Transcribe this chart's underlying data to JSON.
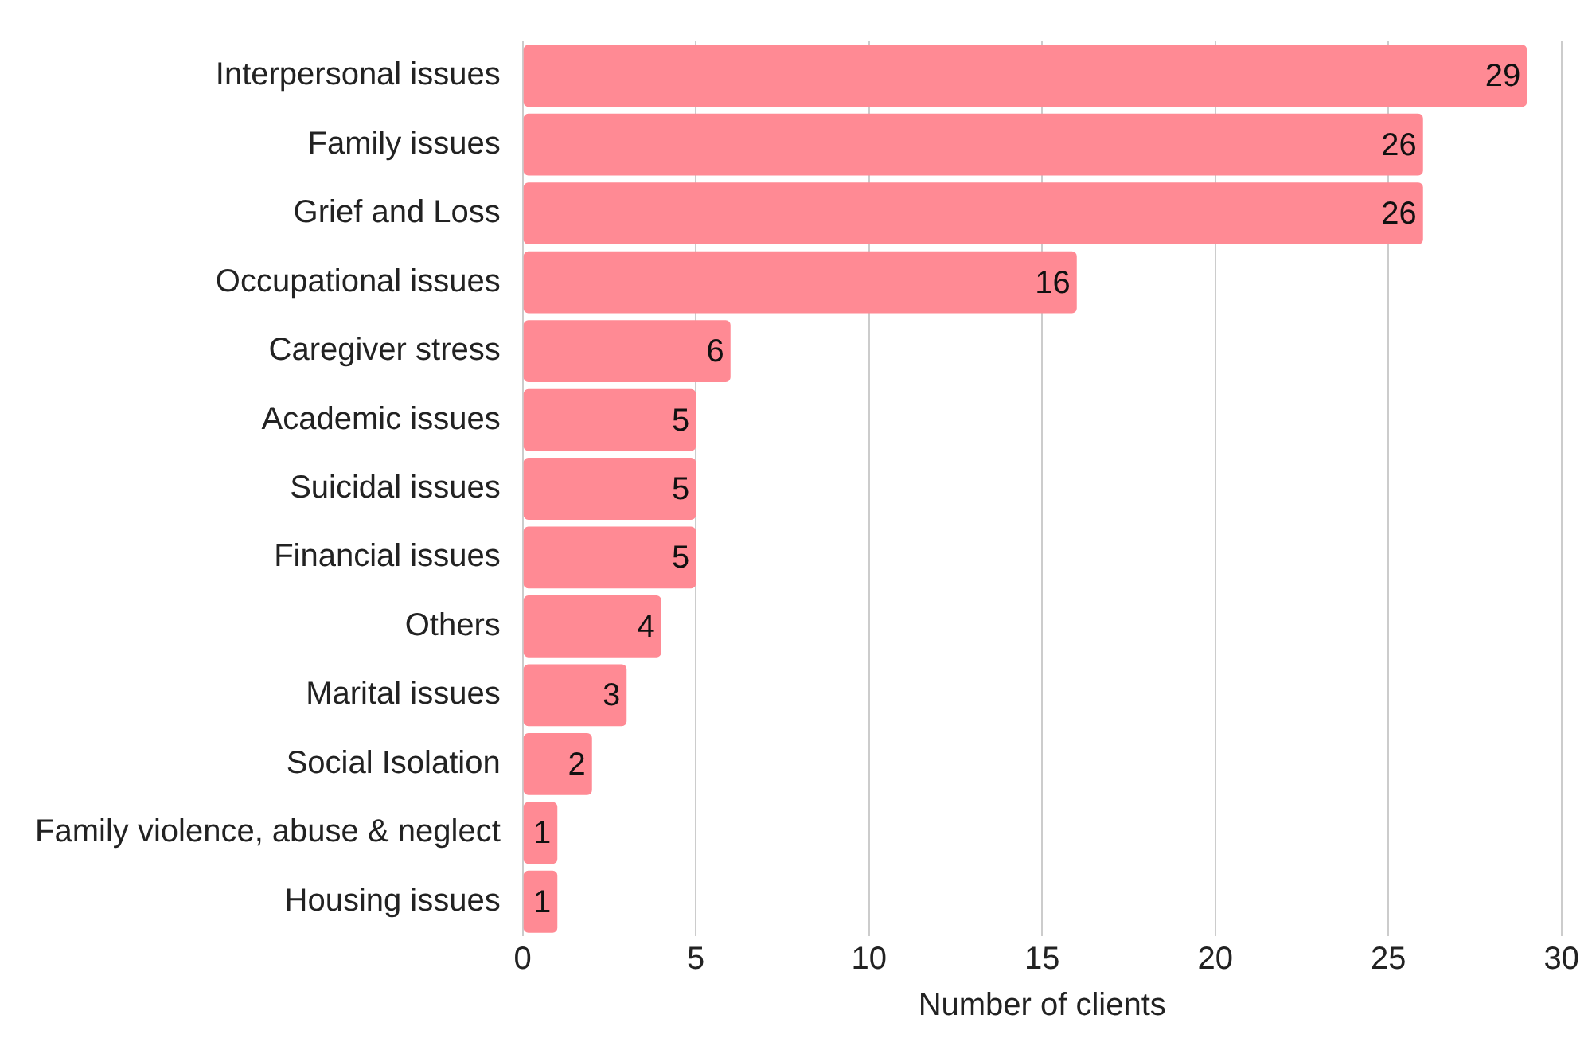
{
  "chart_data": {
    "type": "bar",
    "orientation": "horizontal",
    "xlabel": "Number of clients",
    "categories": [
      "Interpersonal issues",
      "Family issues",
      "Grief and Loss",
      "Occupational issues",
      "Caregiver stress",
      "Academic issues",
      "Suicidal issues",
      "Financial issues",
      "Others",
      "Marital issues",
      "Social Isolation",
      "Family violence, abuse & neglect",
      "Housing issues"
    ],
    "values": [
      29,
      26,
      26,
      16,
      6,
      5,
      5,
      5,
      4,
      3,
      2,
      1,
      1
    ],
    "color": "#ff8a94",
    "xlim": [
      0,
      30
    ],
    "xticks": [
      0,
      5,
      10,
      15,
      20,
      25,
      30
    ],
    "grid": "x",
    "legend": false,
    "data_labels": true
  }
}
